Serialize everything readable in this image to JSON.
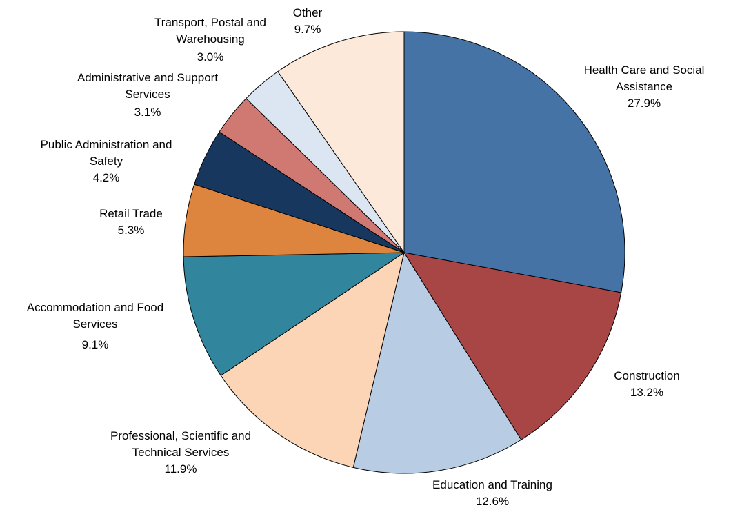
{
  "chart_data": {
    "type": "pie",
    "categories": [
      "Health Care and Social Assistance",
      "Construction",
      "Education and Training",
      "Professional, Scientific and Technical Services",
      "Accommodation and Food Services",
      "Retail Trade",
      "Public Administration and Safety",
      "Administrative and Support Services",
      "Transport, Postal and Warehousing",
      "Other"
    ],
    "values": [
      27.9,
      13.2,
      12.6,
      11.9,
      9.1,
      5.3,
      4.2,
      3.1,
      3.0,
      9.7
    ],
    "value_labels": [
      "27.9%",
      "13.2%",
      "12.6%",
      "11.9%",
      "9.1%",
      "5.3%",
      "4.2%",
      "3.1%",
      "3.0%",
      "9.7%"
    ],
    "colors": [
      "#4673a6",
      "#a84646",
      "#b8cce4",
      "#fbd5b5",
      "#31859c",
      "#dd843f",
      "#17375e",
      "#d07872",
      "#dce6f2",
      "#fde9d9"
    ]
  }
}
